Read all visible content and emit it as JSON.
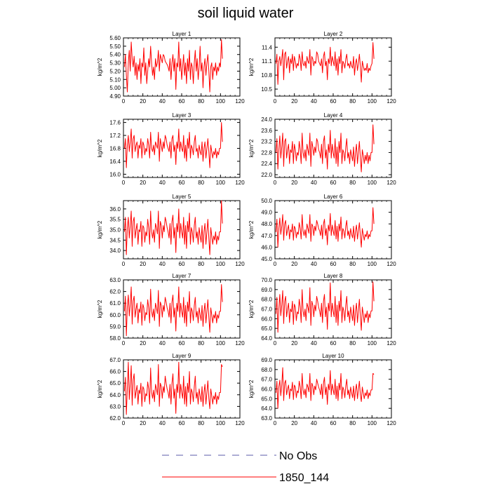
{
  "title": "soil liquid water",
  "legend": {
    "entries": [
      {
        "label": "No Obs",
        "color": "#5b5ba8",
        "dash": true
      },
      {
        "label": "1850_144",
        "color": "#ff0000",
        "dash": false
      }
    ]
  },
  "colors": {
    "series": "#ff0000",
    "axis": "#000000"
  },
  "chart_data": [
    {
      "type": "line",
      "title": "Layer 1",
      "ylabel": "kg/m^2",
      "xlabel": "",
      "xlim": [
        0,
        120
      ],
      "ylim": [
        4.9,
        5.6
      ],
      "xticks": [
        "0",
        "20",
        "40",
        "60",
        "80",
        "100",
        "120"
      ],
      "yticks": [
        "4.90",
        "5.00",
        "5.10",
        "5.20",
        "5.30",
        "5.40",
        "5.50",
        "5.60"
      ],
      "grid": false,
      "series": [
        {
          "name": "1850_144",
          "x_start": 1,
          "x_step": 1,
          "values": []
        }
      ]
    },
    {
      "type": "line",
      "title": "Layer 2",
      "ylabel": "kg/m^2",
      "xlabel": "",
      "xlim": [
        0,
        120
      ],
      "ylim": [
        10.35,
        11.6
      ],
      "xticks": [
        "0",
        "20",
        "40",
        "60",
        "80",
        "100",
        "120"
      ],
      "yticks": [
        "10.5",
        "10.8",
        "11.1",
        "11.4"
      ],
      "grid": false,
      "series": [
        {
          "name": "1850_144",
          "x_start": 1,
          "x_step": 1,
          "values": []
        }
      ]
    },
    {
      "type": "line",
      "title": "Layer 3",
      "ylabel": "kg/m^2",
      "xlabel": "",
      "xlim": [
        0,
        120
      ],
      "ylim": [
        15.9,
        17.7
      ],
      "xticks": [
        "0",
        "20",
        "40",
        "60",
        "80",
        "100",
        "120"
      ],
      "yticks": [
        "16.0",
        "16.4",
        "16.8",
        "17.2",
        "17.6"
      ],
      "grid": false,
      "series": [
        {
          "name": "1850_144",
          "x_start": 1,
          "x_step": 1,
          "values": []
        }
      ]
    },
    {
      "type": "line",
      "title": "Layer 4",
      "ylabel": "kg/m^2",
      "xlabel": "",
      "xlim": [
        0,
        120
      ],
      "ylim": [
        21.9,
        24.0
      ],
      "xticks": [
        "0",
        "20",
        "40",
        "60",
        "80",
        "100",
        "120"
      ],
      "yticks": [
        "22.0",
        "22.4",
        "22.8",
        "23.2",
        "23.6",
        "24.0"
      ],
      "grid": false,
      "series": [
        {
          "name": "1850_144",
          "x_start": 1,
          "x_step": 1,
          "values": []
        }
      ]
    },
    {
      "type": "line",
      "title": "Layer 5",
      "ylabel": "kg/m^2",
      "xlabel": "",
      "xlim": [
        0,
        120
      ],
      "ylim": [
        33.6,
        36.4
      ],
      "xticks": [
        "0",
        "20",
        "40",
        "60",
        "80",
        "100",
        "120"
      ],
      "yticks": [
        "34.0",
        "34.5",
        "35.0",
        "35.5",
        "36.0"
      ],
      "grid": false,
      "series": [
        {
          "name": "1850_144",
          "x_start": 1,
          "x_step": 1,
          "values": []
        }
      ]
    },
    {
      "type": "line",
      "title": "Layer 6",
      "ylabel": "kg/m^2",
      "xlabel": "",
      "xlim": [
        0,
        120
      ],
      "ylim": [
        45.0,
        50.0
      ],
      "xticks": [
        "0",
        "20",
        "40",
        "60",
        "80",
        "100",
        "120"
      ],
      "yticks": [
        "45.0",
        "46.0",
        "47.0",
        "48.0",
        "49.0",
        "50.0"
      ],
      "grid": false,
      "series": [
        {
          "name": "1850_144",
          "x_start": 1,
          "x_step": 1,
          "values": []
        }
      ]
    },
    {
      "type": "line",
      "title": "Layer 7",
      "ylabel": "kg/m^2",
      "xlabel": "",
      "xlim": [
        0,
        120
      ],
      "ylim": [
        58.0,
        63.0
      ],
      "xticks": [
        "0",
        "20",
        "40",
        "60",
        "80",
        "100",
        "120"
      ],
      "yticks": [
        "58.0",
        "59.0",
        "60.0",
        "61.0",
        "62.0",
        "63.0"
      ],
      "grid": false,
      "series": [
        {
          "name": "1850_144",
          "x_start": 1,
          "x_step": 1,
          "values": []
        }
      ]
    },
    {
      "type": "line",
      "title": "Layer 8",
      "ylabel": "kg/m^2",
      "xlabel": "",
      "xlim": [
        0,
        120
      ],
      "ylim": [
        64.0,
        70.0
      ],
      "xticks": [
        "0",
        "20",
        "40",
        "60",
        "80",
        "100",
        "120"
      ],
      "yticks": [
        "64.0",
        "65.0",
        "66.0",
        "67.0",
        "68.0",
        "69.0",
        "70.0"
      ],
      "grid": false,
      "series": [
        {
          "name": "1850_144",
          "x_start": 1,
          "x_step": 1,
          "values": []
        }
      ]
    },
    {
      "type": "line",
      "title": "Layer 9",
      "ylabel": "kg/m^2",
      "xlabel": "",
      "xlim": [
        0,
        120
      ],
      "ylim": [
        62.0,
        67.0
      ],
      "xticks": [
        "0",
        "20",
        "40",
        "60",
        "80",
        "100",
        "120"
      ],
      "yticks": [
        "62.0",
        "63.0",
        "64.0",
        "65.0",
        "66.0",
        "67.0"
      ],
      "grid": false,
      "series": [
        {
          "name": "1850_144",
          "x_start": 1,
          "x_step": 1,
          "values": []
        }
      ]
    },
    {
      "type": "line",
      "title": "Layer 10",
      "ylabel": "kg/m^2",
      "xlabel": "",
      "xlim": [
        0,
        120
      ],
      "ylim": [
        63.0,
        69.0
      ],
      "xticks": [
        "0",
        "20",
        "40",
        "60",
        "80",
        "100",
        "120"
      ],
      "yticks": [
        "63.0",
        "64.0",
        "65.0",
        "66.0",
        "67.0",
        "68.0",
        "69.0"
      ],
      "grid": false,
      "series": [
        {
          "name": "1850_144",
          "x_start": 1,
          "x_step": 1,
          "values": []
        }
      ]
    }
  ]
}
